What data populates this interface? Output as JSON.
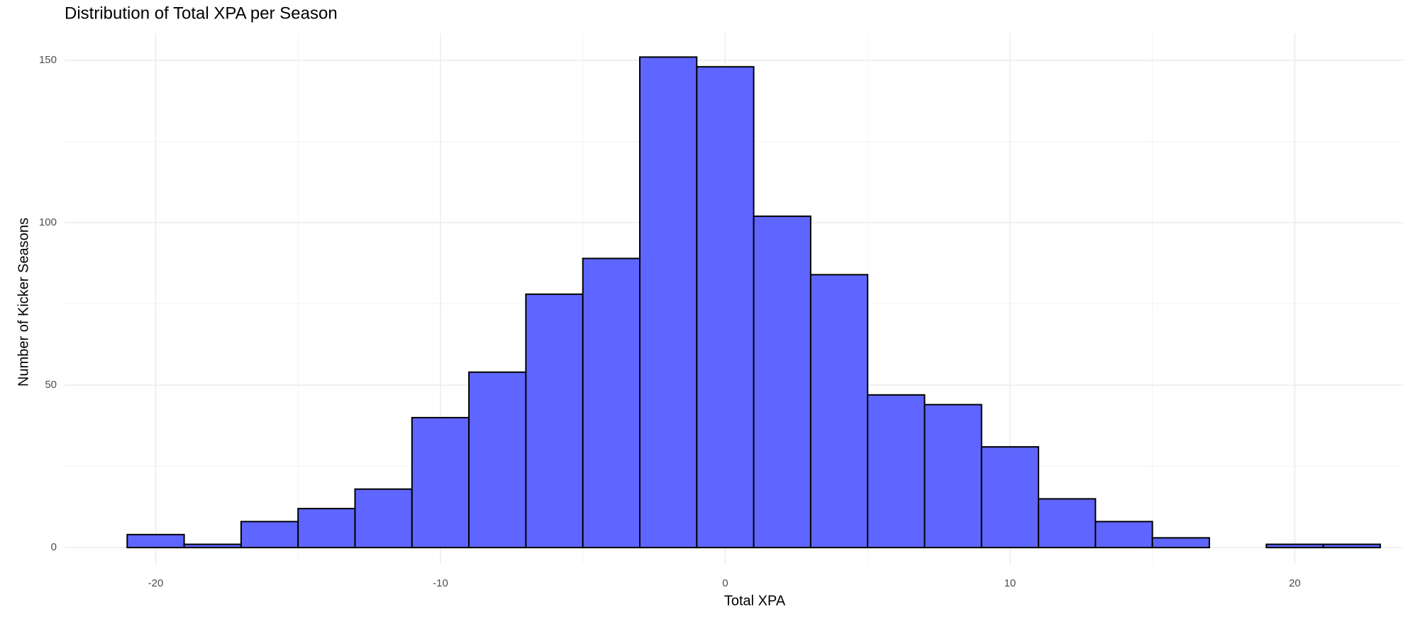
{
  "chart_data": {
    "type": "histogram",
    "title": "Distribution of Total XPA per Season",
    "x_label": "Total XPA",
    "y_label": "Number of Kicker Seasons",
    "bins": [
      -21,
      -19,
      -17,
      -15,
      -13,
      -11,
      -9,
      -7,
      -5,
      -3,
      -1,
      1,
      3,
      5,
      7,
      9,
      11,
      13,
      15,
      17,
      19,
      21,
      23
    ],
    "values": [
      4,
      1,
      8,
      12,
      18,
      40,
      54,
      78,
      89,
      151,
      148,
      102,
      84,
      47,
      44,
      31,
      15,
      8,
      3,
      0,
      1,
      1
    ],
    "color": "#5f66ff",
    "edge_color": "#000000",
    "xlim": [
      -23.2,
      23.8
    ],
    "xticks": [
      -20,
      -10,
      0,
      10,
      20
    ],
    "ylim": [
      -5,
      158.3
    ],
    "yticks": [
      0,
      50,
      100,
      150
    ],
    "grid": true
  }
}
